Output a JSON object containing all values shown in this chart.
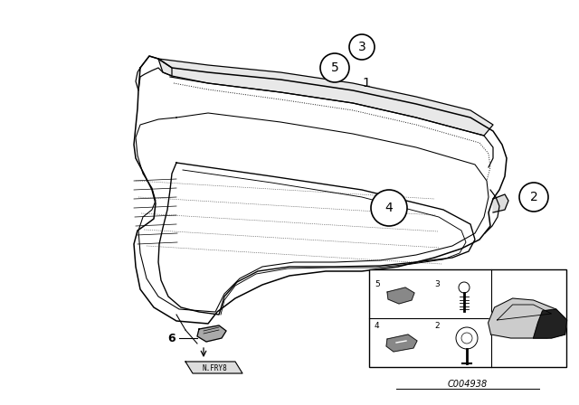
{
  "bg_color": "#ffffff",
  "diagram_id": "C004938",
  "line_color": "#000000",
  "lw": 1.1
}
